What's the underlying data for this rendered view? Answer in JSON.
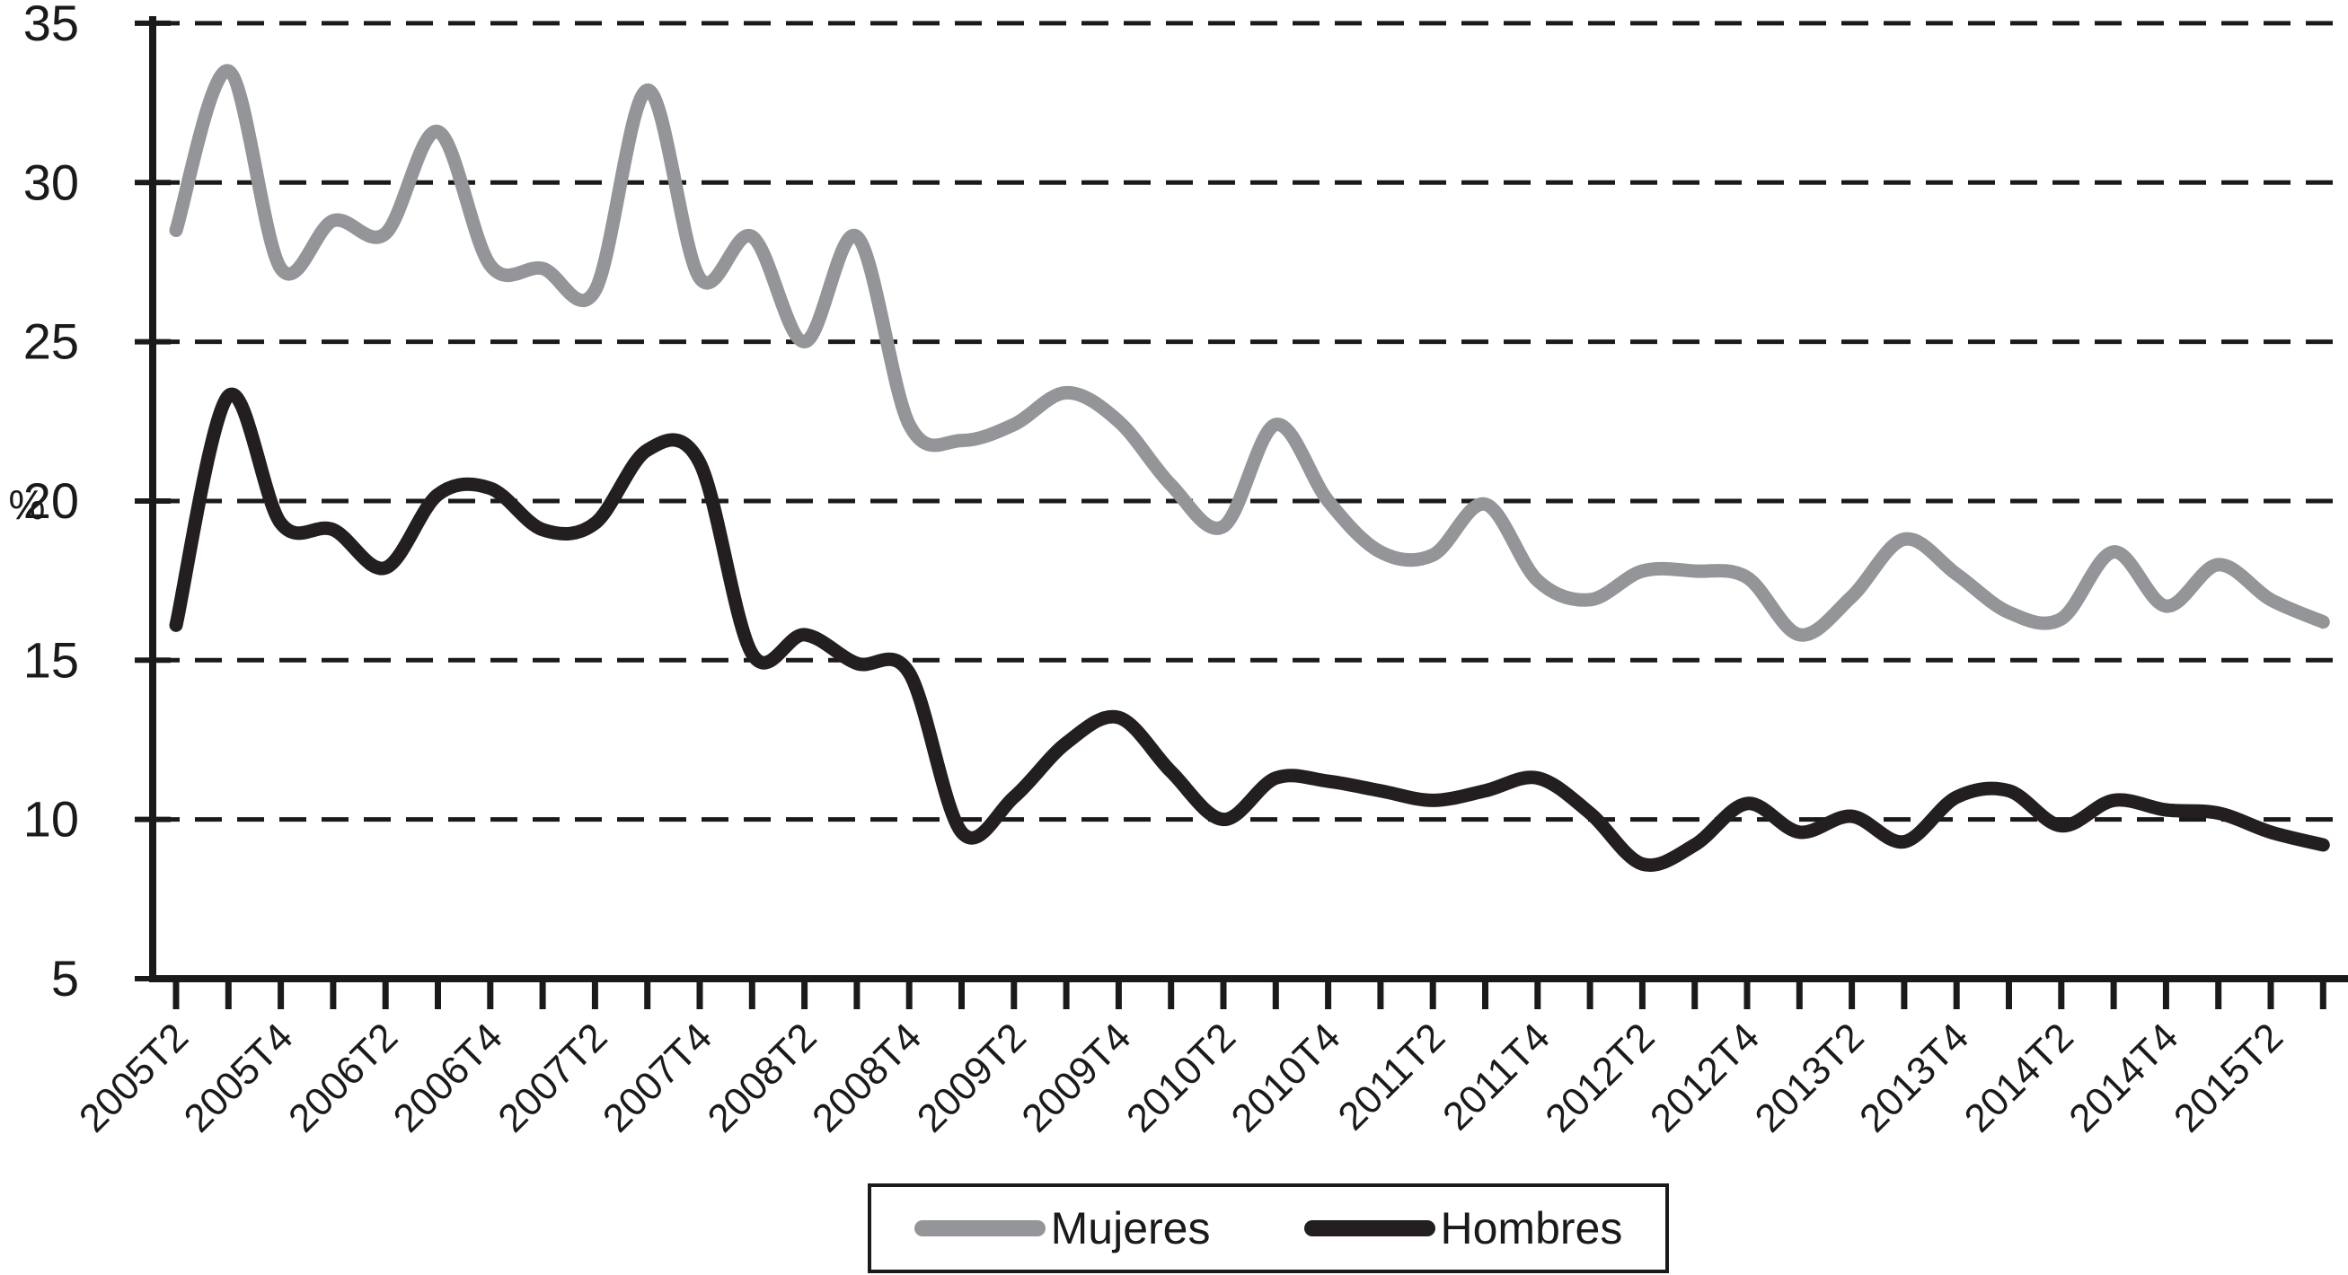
{
  "chart_data": {
    "type": "line",
    "title": "",
    "xlabel": "",
    "ylabel": "%",
    "ylim": [
      5,
      35
    ],
    "yticks": [
      35,
      30,
      25,
      20,
      15,
      10,
      5
    ],
    "ytick_labels": [
      "35",
      "30",
      "25",
      "20",
      "15",
      "10",
      "5"
    ],
    "grid": "horizontal-dashed",
    "grid_color": "#1a1a1a",
    "axis_color": "#1a1a1a",
    "text_color": "#1a1a1a",
    "legend_position": "bottom-center",
    "categories": [
      "2005T2",
      "2005T3",
      "2005T4",
      "2006T1",
      "2006T2",
      "2006T3",
      "2006T4",
      "2007T1",
      "2007T2",
      "2007T3",
      "2007T4",
      "2008T1",
      "2008T2",
      "2008T3",
      "2008T4",
      "2009T1",
      "2009T2",
      "2009T3",
      "2009T4",
      "2010T1",
      "2010T2",
      "2010T3",
      "2010T4",
      "2011T1",
      "2011T2",
      "2011T3",
      "2011T4",
      "2012T1",
      "2012T2",
      "2012T3",
      "2012T4",
      "2013T1",
      "2013T2",
      "2013T3",
      "2013T4",
      "2014T1",
      "2014T2",
      "2014T3",
      "2014T4",
      "2015T1",
      "2015T2",
      "2015T3"
    ],
    "xtick_label_every": 2,
    "xtick_labels_shown": [
      "2005T2",
      "2005T4",
      "2006T2",
      "2006T4",
      "2007T2",
      "2007T4",
      "2008T2",
      "2008T4",
      "2009T2",
      "2009T4",
      "2010T2",
      "2010T4",
      "2011T2",
      "2011T4",
      "2012T2",
      "2012T4",
      "2013T2",
      "2013T4",
      "2014T2",
      "2014T4",
      "2015T2"
    ],
    "series": [
      {
        "name": "Mujeres",
        "color": "#939598",
        "values": [
          28.5,
          33.5,
          27.3,
          28.8,
          28.4,
          31.6,
          27.4,
          27.3,
          26.6,
          32.9,
          27.0,
          28.3,
          25.0,
          28.3,
          22.4,
          21.9,
          22.4,
          23.4,
          22.5,
          20.5,
          19.2,
          22.4,
          20.0,
          18.4,
          18.3,
          19.9,
          17.5,
          16.9,
          17.8,
          17.8,
          17.6,
          15.8,
          17.0,
          18.8,
          17.7,
          16.5,
          16.3,
          18.4,
          16.7,
          18.0,
          16.9,
          16.2
        ]
      },
      {
        "name": "Hombres",
        "color": "#231f20",
        "values": [
          16.1,
          23.3,
          19.3,
          19.1,
          17.9,
          20.2,
          20.4,
          19.1,
          19.3,
          21.6,
          21.2,
          15.2,
          15.8,
          14.9,
          14.6,
          9.6,
          10.7,
          12.4,
          13.2,
          11.5,
          10.0,
          11.3,
          11.2,
          10.9,
          10.6,
          10.9,
          11.3,
          10.2,
          8.6,
          9.2,
          10.5,
          9.6,
          10.1,
          9.3,
          10.7,
          10.9,
          9.8,
          10.6,
          10.3,
          10.2,
          9.6,
          9.2
        ]
      }
    ]
  }
}
